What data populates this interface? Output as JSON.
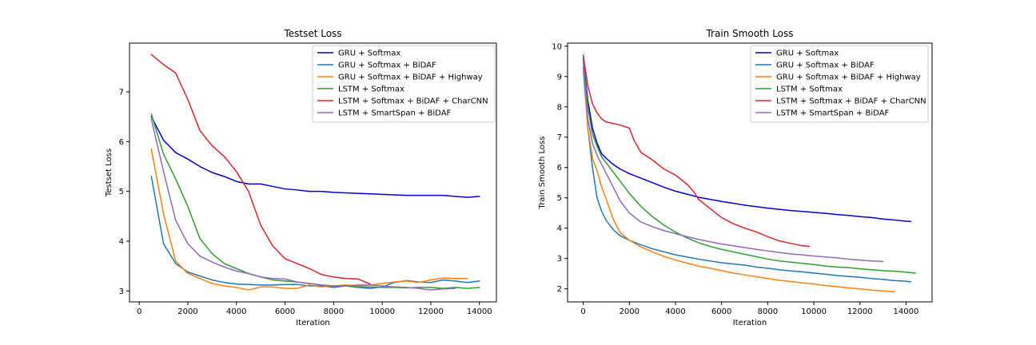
{
  "chart_data": [
    {
      "type": "line",
      "title": "Testset Loss",
      "xlabel": "Iteration",
      "ylabel": "Testset Loss",
      "xlim": [
        -400,
        14700
      ],
      "ylim": [
        2.78,
        7.98
      ],
      "xticks": [
        0,
        2000,
        4000,
        6000,
        8000,
        10000,
        12000,
        14000
      ],
      "yticks": [
        3,
        4,
        5,
        6,
        7
      ],
      "legend": "top-right",
      "grid": false,
      "series": [
        {
          "name": "GRU + Softmax",
          "color": "#0000cc",
          "x": [
            500,
            1000,
            1500,
            2000,
            2500,
            3000,
            3500,
            4000,
            4500,
            5000,
            5500,
            6000,
            6500,
            7000,
            7500,
            8000,
            8500,
            9000,
            9500,
            10000,
            10500,
            11000,
            11500,
            12000,
            12500,
            13000,
            13500,
            14000
          ],
          "y": [
            6.5,
            6.03,
            5.78,
            5.65,
            5.5,
            5.38,
            5.3,
            5.2,
            5.15,
            5.15,
            5.1,
            5.05,
            5.03,
            5.0,
            5.0,
            4.98,
            4.97,
            4.96,
            4.95,
            4.94,
            4.93,
            4.92,
            4.92,
            4.92,
            4.92,
            4.9,
            4.88,
            4.9
          ]
        },
        {
          "name": "GRU + Softmax + BiDAF",
          "color": "#1f77b4",
          "x": [
            500,
            1000,
            1500,
            2000,
            2500,
            3000,
            3500,
            4000,
            4500,
            5000,
            5500,
            6000,
            6500,
            7000,
            7500,
            8000,
            8500,
            9000,
            9500,
            10000,
            10500,
            11000,
            11500,
            12000,
            12500,
            13000,
            13500,
            14000
          ],
          "y": [
            5.3,
            3.95,
            3.55,
            3.38,
            3.3,
            3.22,
            3.17,
            3.14,
            3.13,
            3.12,
            3.12,
            3.13,
            3.13,
            3.1,
            3.1,
            3.07,
            3.1,
            3.07,
            3.05,
            3.08,
            3.17,
            3.21,
            3.18,
            3.17,
            3.22,
            3.2,
            3.17,
            3.2
          ]
        },
        {
          "name": "GRU + Softmax + BiDAF + Highway",
          "color": "#ff7f0e",
          "x": [
            500,
            1000,
            1500,
            2000,
            2500,
            3000,
            3500,
            4000,
            4500,
            5000,
            5500,
            6000,
            6500,
            7000,
            7500,
            8000,
            8500,
            9000,
            9500,
            10000,
            10500,
            11000,
            11500,
            12000,
            12500,
            13000,
            13500
          ],
          "y": [
            5.85,
            4.55,
            3.6,
            3.35,
            3.25,
            3.15,
            3.1,
            3.07,
            3.02,
            3.08,
            3.08,
            3.05,
            3.05,
            3.12,
            3.08,
            3.1,
            3.12,
            3.1,
            3.12,
            3.15,
            3.18,
            3.2,
            3.17,
            3.22,
            3.26,
            3.25,
            3.25
          ]
        },
        {
          "name": "LSTM + Softmax",
          "color": "#2ca02c",
          "x": [
            500,
            1000,
            1500,
            2000,
            2500,
            3000,
            3500,
            4000,
            4500,
            5000,
            5500,
            6000,
            6500,
            7000,
            7500,
            8000,
            8500,
            9000,
            9500,
            10000,
            10500,
            11000,
            11500,
            12000,
            12500,
            13000,
            13500,
            14000
          ],
          "y": [
            6.55,
            5.75,
            5.25,
            4.7,
            4.05,
            3.75,
            3.55,
            3.45,
            3.35,
            3.28,
            3.22,
            3.2,
            3.18,
            3.15,
            3.12,
            3.1,
            3.1,
            3.08,
            3.08,
            3.07,
            3.07,
            3.06,
            3.07,
            3.07,
            3.05,
            3.07,
            3.05,
            3.07
          ]
        },
        {
          "name": "LSTM + Softmax + BiDAF + CharCNN",
          "color": "#d62728",
          "x": [
            500,
            1000,
            1500,
            2000,
            2500,
            3000,
            3500,
            4000,
            4500,
            5000,
            5500,
            6000,
            6500,
            7000,
            7500,
            8000,
            8500,
            9000,
            9500
          ],
          "y": [
            7.75,
            7.55,
            7.38,
            6.85,
            6.22,
            5.92,
            5.7,
            5.4,
            5.0,
            4.32,
            3.9,
            3.65,
            3.55,
            3.45,
            3.33,
            3.28,
            3.25,
            3.24,
            3.14
          ]
        },
        {
          "name": "LSTM + SmartSpan + BiDAF",
          "color": "#9467bd",
          "x": [
            500,
            1000,
            1500,
            2000,
            2500,
            3000,
            3500,
            4000,
            4500,
            5000,
            5500,
            6000,
            6500,
            7000,
            7500,
            8000,
            8500,
            9000,
            9500,
            10000,
            10500,
            11000,
            11500,
            12000,
            12500,
            13000
          ],
          "y": [
            6.45,
            5.4,
            4.42,
            3.95,
            3.7,
            3.58,
            3.48,
            3.4,
            3.35,
            3.28,
            3.25,
            3.24,
            3.18,
            3.15,
            3.12,
            3.1,
            3.1,
            3.12,
            3.12,
            3.1,
            3.08,
            3.07,
            3.05,
            3.02,
            3.04,
            3.05
          ]
        }
      ]
    },
    {
      "type": "line",
      "title": "Train Smooth Loss",
      "xlabel": "Iteration",
      "ylabel": "Train Smooth Loss",
      "xlim": [
        -680,
        15130
      ],
      "ylim": [
        1.57,
        10.1
      ],
      "xticks": [
        0,
        2000,
        4000,
        6000,
        8000,
        10000,
        12000,
        14000
      ],
      "yticks": [
        2,
        3,
        4,
        5,
        6,
        7,
        8,
        9,
        10
      ],
      "legend": "top-right",
      "grid": false,
      "series": [
        {
          "name": "GRU + Softmax",
          "color": "#0000cc",
          "x": [
            0,
            200,
            400,
            600,
            800,
            1000,
            1300,
            1600,
            2000,
            2500,
            3000,
            3500,
            4000,
            4500,
            5000,
            5500,
            6000,
            6500,
            7000,
            7500,
            8000,
            8500,
            9000,
            9500,
            10000,
            10500,
            11000,
            11500,
            12000,
            12500,
            13000,
            13500,
            14000,
            14200
          ],
          "y": [
            9.6,
            8.2,
            7.3,
            6.8,
            6.45,
            6.3,
            6.1,
            5.95,
            5.8,
            5.65,
            5.5,
            5.35,
            5.22,
            5.12,
            5.02,
            4.95,
            4.88,
            4.82,
            4.76,
            4.71,
            4.66,
            4.62,
            4.58,
            4.55,
            4.52,
            4.49,
            4.45,
            4.42,
            4.38,
            4.35,
            4.3,
            4.27,
            4.23,
            4.22
          ]
        },
        {
          "name": "GRU + Softmax + BiDAF",
          "color": "#1f77b4",
          "x": [
            0,
            200,
            400,
            600,
            800,
            1000,
            1300,
            1600,
            2000,
            2500,
            3000,
            3500,
            4000,
            4500,
            5000,
            5500,
            6000,
            6500,
            7000,
            7500,
            8000,
            8500,
            9000,
            9500,
            10000,
            10500,
            11000,
            11500,
            12000,
            12500,
            13000,
            13500,
            14000,
            14200
          ],
          "y": [
            9.3,
            7.3,
            6.0,
            5.0,
            4.55,
            4.25,
            3.95,
            3.75,
            3.6,
            3.45,
            3.32,
            3.22,
            3.12,
            3.05,
            2.98,
            2.92,
            2.86,
            2.82,
            2.78,
            2.72,
            2.68,
            2.63,
            2.59,
            2.56,
            2.52,
            2.48,
            2.44,
            2.41,
            2.38,
            2.34,
            2.31,
            2.27,
            2.25,
            2.23
          ]
        },
        {
          "name": "GRU + Softmax + BiDAF + Highway",
          "color": "#ff7f0e",
          "x": [
            0,
            200,
            400,
            600,
            800,
            1000,
            1300,
            1600,
            2000,
            2500,
            3000,
            3500,
            4000,
            4500,
            5000,
            5500,
            6000,
            6500,
            7000,
            7500,
            8000,
            8500,
            9000,
            9500,
            10000,
            10500,
            11000,
            11500,
            12000,
            12500,
            13000,
            13500
          ],
          "y": [
            9.6,
            7.3,
            6.3,
            5.9,
            5.35,
            4.95,
            4.3,
            3.85,
            3.6,
            3.38,
            3.22,
            3.07,
            2.95,
            2.85,
            2.75,
            2.68,
            2.6,
            2.52,
            2.46,
            2.4,
            2.34,
            2.28,
            2.24,
            2.2,
            2.16,
            2.11,
            2.07,
            2.03,
            2.0,
            1.96,
            1.93,
            1.9
          ]
        },
        {
          "name": "LSTM + Softmax",
          "color": "#2ca02c",
          "x": [
            0,
            200,
            400,
            600,
            800,
            1000,
            1300,
            1600,
            2000,
            2500,
            3000,
            3500,
            4000,
            4500,
            5000,
            5500,
            6000,
            6500,
            7000,
            7500,
            8000,
            8500,
            9000,
            9500,
            10000,
            10500,
            11000,
            11500,
            12000,
            12500,
            13000,
            13500,
            14000,
            14400
          ],
          "y": [
            9.55,
            8.0,
            7.1,
            6.7,
            6.35,
            6.15,
            5.85,
            5.55,
            5.15,
            4.72,
            4.38,
            4.1,
            3.87,
            3.68,
            3.52,
            3.4,
            3.3,
            3.22,
            3.14,
            3.06,
            2.98,
            2.92,
            2.88,
            2.84,
            2.8,
            2.75,
            2.72,
            2.7,
            2.66,
            2.63,
            2.6,
            2.58,
            2.55,
            2.52
          ]
        },
        {
          "name": "LSTM + Softmax + BiDAF + CharCNN",
          "color": "#d62728",
          "x": [
            0,
            200,
            400,
            600,
            800,
            1000,
            1300,
            1600,
            2000,
            2200,
            2500,
            3000,
            3500,
            4000,
            4500,
            4800,
            5000,
            5500,
            6000,
            6500,
            7000,
            7500,
            8000,
            8500,
            9000,
            9500,
            9800
          ],
          "y": [
            9.7,
            8.7,
            8.1,
            7.8,
            7.6,
            7.5,
            7.45,
            7.4,
            7.3,
            6.9,
            6.5,
            6.25,
            5.95,
            5.75,
            5.45,
            5.2,
            4.95,
            4.65,
            4.35,
            4.15,
            4.0,
            3.88,
            3.72,
            3.58,
            3.5,
            3.42,
            3.4
          ]
        },
        {
          "name": "LSTM + SmartSpan + BiDAF",
          "color": "#9467bd",
          "x": [
            0,
            200,
            400,
            600,
            800,
            1000,
            1300,
            1600,
            2000,
            2500,
            3000,
            3500,
            4000,
            4500,
            5000,
            5500,
            6000,
            6500,
            7000,
            7500,
            8000,
            8500,
            9000,
            9500,
            10000,
            10500,
            11000,
            11500,
            12000,
            12500,
            13000
          ],
          "y": [
            9.5,
            7.6,
            6.8,
            6.4,
            6.1,
            5.8,
            5.35,
            4.9,
            4.5,
            4.2,
            4.05,
            3.92,
            3.82,
            3.72,
            3.63,
            3.55,
            3.48,
            3.42,
            3.36,
            3.3,
            3.25,
            3.2,
            3.15,
            3.12,
            3.08,
            3.05,
            3.02,
            2.98,
            2.95,
            2.92,
            2.9
          ]
        }
      ]
    }
  ]
}
